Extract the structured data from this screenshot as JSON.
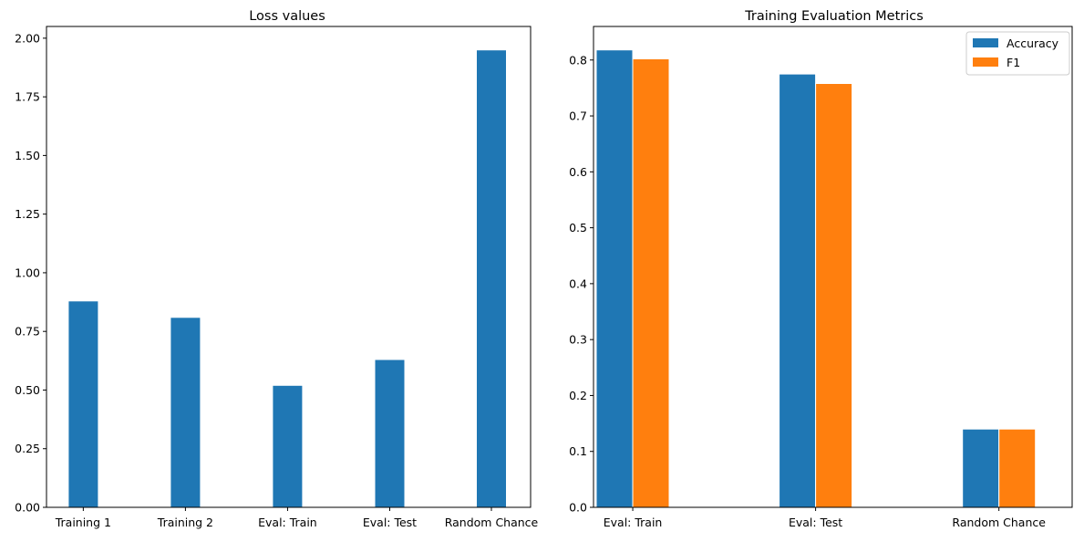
{
  "chart_data": [
    {
      "type": "bar",
      "title": "Loss values",
      "xlabel": "",
      "ylabel": "",
      "categories": [
        "Training 1",
        "Training 2",
        "Eval: Train",
        "Eval: Test",
        "Random Chance"
      ],
      "series": [
        {
          "values": [
            0.88,
            0.81,
            0.52,
            0.63,
            1.95
          ],
          "color": "#1f77b4"
        }
      ],
      "ylim": [
        0,
        2.05
      ],
      "yticks": [
        0.0,
        0.25,
        0.5,
        0.75,
        1.0,
        1.25,
        1.5,
        1.75,
        2.0
      ],
      "ytick_labels": [
        "0.00",
        "0.25",
        "0.50",
        "0.75",
        "1.00",
        "1.25",
        "1.50",
        "1.75",
        "2.00"
      ],
      "grid": false,
      "legend": false
    },
    {
      "type": "bar",
      "title": "Training Evaluation Metrics",
      "xlabel": "",
      "ylabel": "",
      "categories": [
        "Eval: Train",
        "Eval: Test",
        "Random Chance"
      ],
      "series": [
        {
          "name": "Accuracy",
          "values": [
            0.818,
            0.775,
            0.14
          ],
          "color": "#1f77b4"
        },
        {
          "name": "F1",
          "values": [
            0.802,
            0.758,
            0.14
          ],
          "color": "#ff7f0e"
        }
      ],
      "ylim": [
        0,
        0.86
      ],
      "yticks": [
        0.0,
        0.1,
        0.2,
        0.3,
        0.4,
        0.5,
        0.6,
        0.7,
        0.8
      ],
      "ytick_labels": [
        "0.0",
        "0.1",
        "0.2",
        "0.3",
        "0.4",
        "0.5",
        "0.6",
        "0.7",
        "0.8"
      ],
      "grid": false,
      "legend": true,
      "legend_position": "top-right"
    }
  ]
}
